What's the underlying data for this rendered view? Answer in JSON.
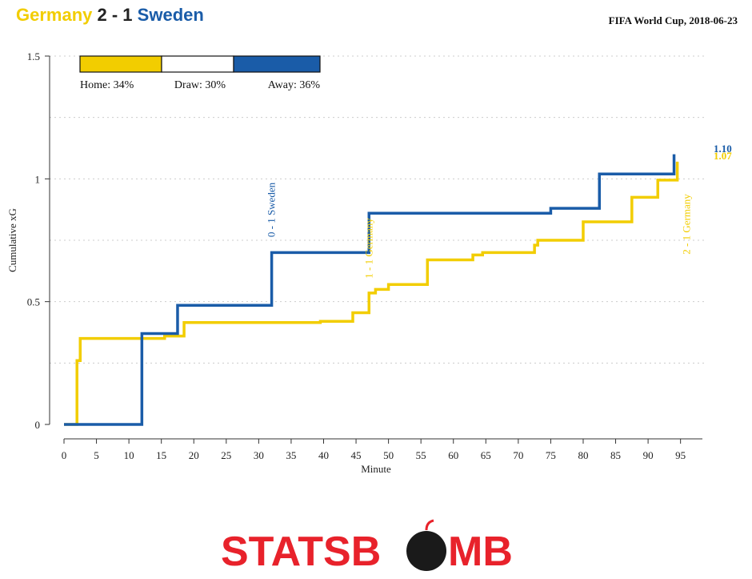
{
  "header": {
    "home_team": "Germany",
    "score": "2 - 1",
    "away_team": "Sweden",
    "competition": "FIFA World Cup, 2018-06-23"
  },
  "colors": {
    "home": "#f2cd00",
    "away": "#1a5ca8",
    "axis": "#333333",
    "grid": "#cccccc",
    "brand_red": "#e8222b",
    "brand_dark": "#1a1a1a"
  },
  "probabilities": {
    "home_label": "Home: 34%",
    "draw_label": "Draw: 30%",
    "away_label": "Away: 36%",
    "home": 0.34,
    "draw": 0.3,
    "away": 0.36
  },
  "brand": {
    "left": "STATSB",
    "right": "MB"
  },
  "chart_data": {
    "type": "line",
    "xlabel": "Minute",
    "ylabel": "Cumulative xG",
    "xlim": [
      0,
      98
    ],
    "ylim": [
      0,
      1.5
    ],
    "x_ticks": [
      0,
      5,
      10,
      15,
      20,
      25,
      30,
      35,
      40,
      45,
      50,
      55,
      60,
      65,
      70,
      75,
      80,
      85,
      90,
      95
    ],
    "y_ticks": [
      0,
      0.5,
      1,
      1.5
    ],
    "y_tick_labels": [
      "0",
      "0.5",
      "1",
      "1.5"
    ],
    "grid": "horizontal dotted",
    "series": [
      {
        "name": "Germany",
        "color": "#f2cd00",
        "final_label": "1.07",
        "x": [
          0,
          2,
          2.5,
          15.5,
          18.5,
          39.5,
          44.5,
          47,
          48,
          50,
          56,
          63,
          64.5,
          72.5,
          73,
          80,
          87.5,
          91.5,
          94.5
        ],
        "y": [
          0,
          0.26,
          0.35,
          0.36,
          0.415,
          0.42,
          0.455,
          0.535,
          0.55,
          0.57,
          0.67,
          0.69,
          0.7,
          0.73,
          0.75,
          0.825,
          0.925,
          0.995,
          1.07
        ]
      },
      {
        "name": "Sweden",
        "color": "#1a5ca8",
        "final_label": "1.10",
        "x": [
          0,
          12,
          17.5,
          32,
          47,
          75,
          82.5,
          94
        ],
        "y": [
          0,
          0.37,
          0.485,
          0.7,
          0.86,
          0.88,
          1.02,
          1.1
        ]
      }
    ],
    "annotations": [
      {
        "text": "0 - 1 Sweden",
        "minute": 32,
        "team": "away"
      },
      {
        "text": "1 - 1 Germany",
        "minute": 47,
        "team": "home"
      },
      {
        "text": "2 - 1 Germany",
        "minute": 94.5,
        "team": "home"
      }
    ]
  }
}
